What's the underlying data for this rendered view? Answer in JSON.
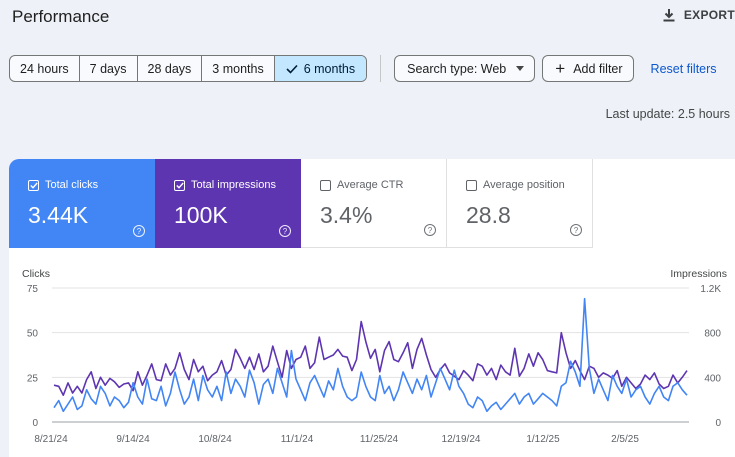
{
  "header": {
    "title": "Performance",
    "export_label": "EXPORT"
  },
  "filters": {
    "date_ranges": [
      {
        "label": "24 hours",
        "active": false
      },
      {
        "label": "7 days",
        "active": false
      },
      {
        "label": "28 days",
        "active": false
      },
      {
        "label": "3 months",
        "active": false
      },
      {
        "label": "6 months",
        "active": true
      }
    ],
    "search_type": "Search type: Web",
    "add_filter": "Add filter",
    "reset": "Reset filters"
  },
  "last_update": "Last update: 2.5 hours",
  "metrics": [
    {
      "label": "Total clicks",
      "value": "3.44K",
      "checked": true,
      "color": "#4285f4"
    },
    {
      "label": "Total impressions",
      "value": "100K",
      "checked": true,
      "color": "#5e35b1"
    },
    {
      "label": "Average CTR",
      "value": "3.4%",
      "checked": false
    },
    {
      "label": "Average position",
      "value": "28.8",
      "checked": false
    }
  ],
  "chart_data": {
    "type": "line",
    "left_axis_label": "Clicks",
    "right_axis_label": "Impressions",
    "left_ticks": [
      0,
      25,
      50,
      75
    ],
    "right_ticks": [
      "0",
      "400",
      "800",
      "1.2K"
    ],
    "left_range": [
      0,
      75
    ],
    "right_range": [
      0,
      1200
    ],
    "x_tick_labels": [
      "8/21/24",
      "9/14/24",
      "10/8/24",
      "11/1/24",
      "11/25/24",
      "12/19/24",
      "1/12/25",
      "2/5/25"
    ],
    "grid": true,
    "legend": "none",
    "series": [
      {
        "axis": "right",
        "color": "#5e35b1",
        "values": [
          330,
          320,
          240,
          350,
          260,
          320,
          260,
          380,
          450,
          300,
          400,
          330,
          390,
          360,
          310,
          340,
          350,
          280,
          450,
          330,
          420,
          520,
          380,
          370,
          520,
          420,
          480,
          620,
          470,
          380,
          560,
          450,
          500,
          370,
          420,
          450,
          550,
          420,
          470,
          650,
          570,
          480,
          580,
          470,
          610,
          450,
          500,
          680,
          540,
          400,
          640,
          480,
          560,
          580,
          680,
          480,
          530,
          760,
          560,
          580,
          600,
          650,
          590,
          580,
          460,
          560,
          900,
          720,
          570,
          650,
          450,
          640,
          720,
          560,
          540,
          620,
          710,
          480,
          650,
          750,
          600,
          470,
          400,
          470,
          520,
          440,
          410,
          380,
          460,
          420,
          370,
          520,
          500,
          420,
          480,
          380,
          510,
          450,
          420,
          660,
          410,
          480,
          610,
          500,
          620,
          560,
          460,
          450,
          440,
          800,
          620,
          480,
          550,
          460,
          380,
          500,
          480,
          400,
          440,
          420,
          390,
          460,
          320,
          400,
          350,
          300,
          340,
          420,
          380,
          440,
          340,
          300,
          320,
          420,
          350,
          400,
          460
        ]
      },
      {
        "axis": "left",
        "color": "#4285f4",
        "values": [
          8,
          12,
          6,
          10,
          14,
          7,
          9,
          18,
          13,
          10,
          20,
          16,
          9,
          14,
          12,
          8,
          11,
          22,
          14,
          10,
          24,
          13,
          12,
          20,
          9,
          16,
          28,
          18,
          10,
          14,
          24,
          12,
          26,
          18,
          14,
          20,
          12,
          28,
          16,
          24,
          20,
          14,
          29,
          22,
          10,
          21,
          24,
          16,
          30,
          22,
          14,
          40,
          24,
          18,
          12,
          22,
          26,
          20,
          14,
          23,
          18,
          30,
          20,
          14,
          12,
          14,
          28,
          20,
          14,
          12,
          26,
          16,
          20,
          12,
          18,
          28,
          22,
          16,
          24,
          18,
          26,
          14,
          22,
          30,
          24,
          18,
          29,
          20,
          16,
          10,
          8,
          14,
          12,
          6,
          9,
          11,
          7,
          10,
          13,
          16,
          10,
          14,
          16,
          10,
          13,
          16,
          14,
          12,
          9,
          20,
          22,
          34,
          28,
          20,
          69,
          30,
          16,
          24,
          18,
          12,
          26,
          20,
          16,
          24,
          14,
          18,
          20,
          14,
          10,
          16,
          20,
          14,
          12,
          20,
          22,
          18,
          15
        ]
      }
    ]
  }
}
